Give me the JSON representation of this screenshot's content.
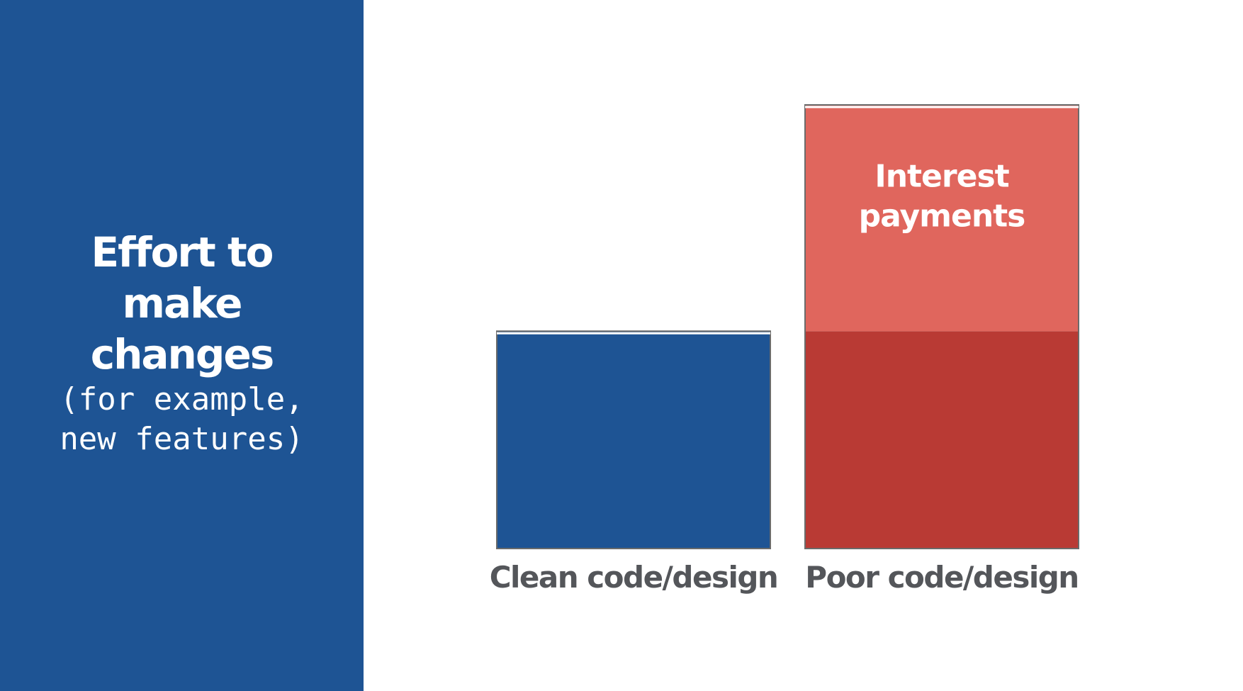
{
  "side_panel": {
    "title": "Effort to make changes",
    "subtitle": "(for example, new features)",
    "background_color": "#1e5494"
  },
  "chart_data": {
    "type": "bar",
    "stacked": true,
    "categories": [
      "Clean code/design",
      "Poor code/design"
    ],
    "ylim": [
      0,
      100
    ],
    "series": [
      {
        "name": "",
        "values": [
          49,
          49
        ],
        "colors": [
          "#1e5494",
          "#b93a34"
        ]
      },
      {
        "name": "Interest payments",
        "values": [
          0,
          51
        ],
        "colors": [
          "#1e5494",
          "#e0665d"
        ]
      }
    ],
    "inner_labels": [
      {
        "category": "Poor code/design",
        "series": "Interest payments",
        "lines": [
          "Interest",
          "payments"
        ]
      }
    ],
    "grid": false,
    "legend": "none"
  }
}
